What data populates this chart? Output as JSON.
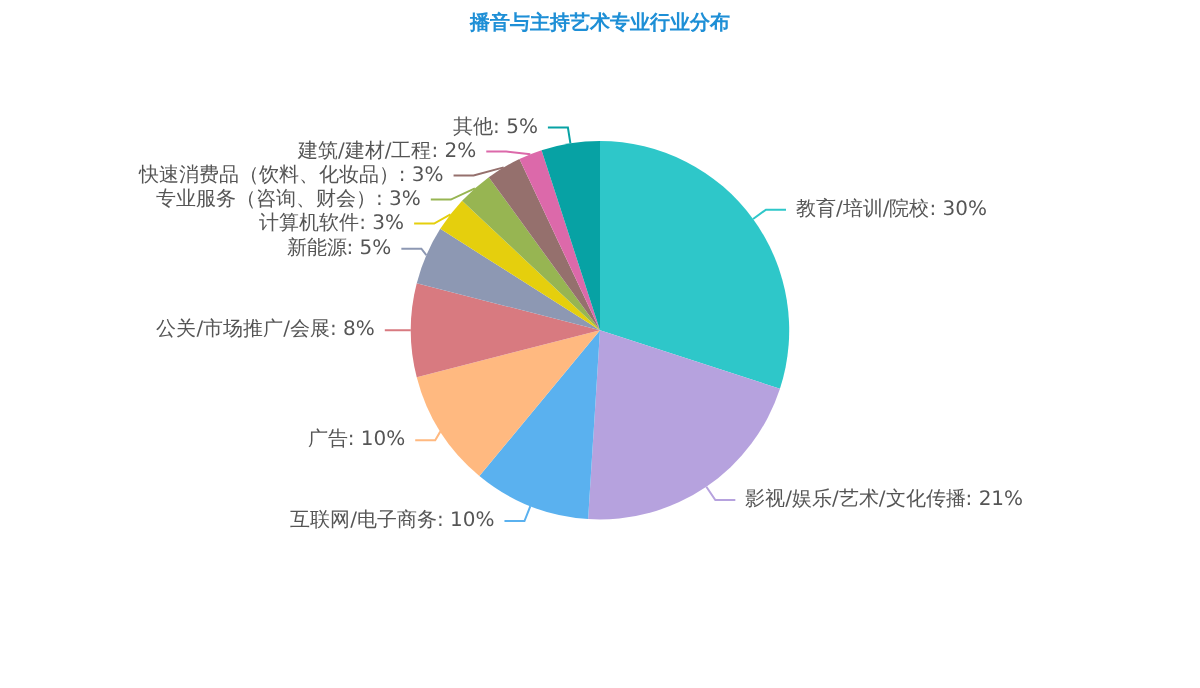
{
  "chart_data": {
    "type": "pie",
    "title": "播音与主持艺术专业行业分布",
    "categories": [
      "教育/培训/院校",
      "影视/娱乐/艺术/文化传播",
      "互联网/电子商务",
      "广告",
      "公关/市场推广/会展",
      "新能源",
      "计算机软件",
      "专业服务（咨询、财会）",
      "快速消费品（饮料、化妆品）",
      "建筑/建材/工程",
      "其他"
    ],
    "values": [
      30,
      21,
      10,
      10,
      8,
      5,
      3,
      3,
      3,
      2,
      5
    ],
    "value_labels": [
      "30%",
      "21%",
      "10%",
      "10%",
      "8%",
      "5%",
      "3%",
      "3%",
      "3%",
      "2%",
      "5%"
    ],
    "colors": [
      "#2ec7c9",
      "#b6a2de",
      "#5ab1ef",
      "#ffb980",
      "#d87a80",
      "#8d98b3",
      "#e5cf0d",
      "#97b552",
      "#95706d",
      "#dc69aa",
      "#07a2a4"
    ]
  }
}
